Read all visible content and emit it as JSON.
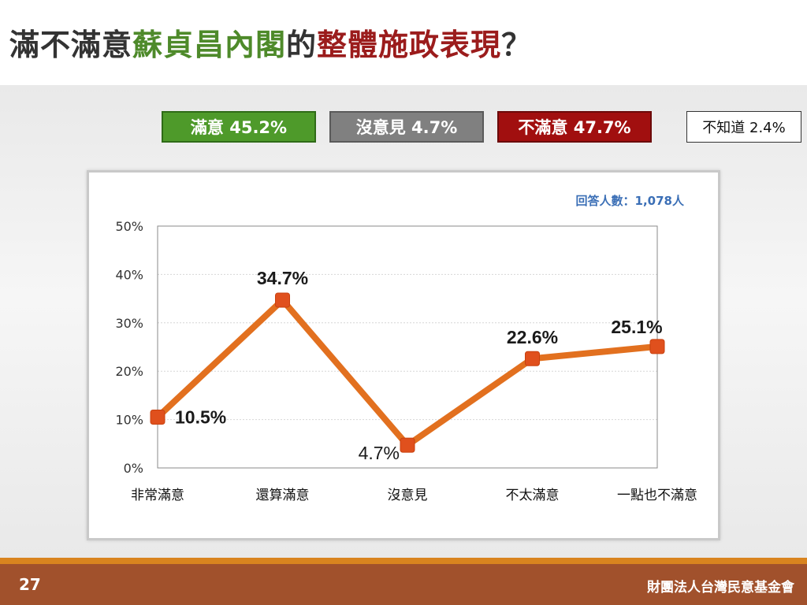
{
  "title": {
    "part1": "滿不滿意",
    "part2": "蘇貞昌內閣",
    "part3": "的",
    "part4": "整體施政表現",
    "part5": "？"
  },
  "summary": {
    "satisfied": "滿意 45.2%",
    "neutral": "沒意見 4.7%",
    "dissatisfied": "不滿意 47.7%",
    "unknown": "不知道 2.4%"
  },
  "colors": {
    "line": "#e2701f",
    "marker": "#e0501d",
    "satisfied": "#4e9a2a",
    "neutral": "#808080",
    "dissatisfied": "#a10f0f",
    "footer": "#a1512c",
    "footer_stripe": "#d9841f",
    "sample_text": "#3b6fb6"
  },
  "chart_data": {
    "type": "line",
    "sample_note": "回答人數：1,078人",
    "categories": [
      "非常滿意",
      "還算滿意",
      "沒意見",
      "不太滿意",
      "一點也不滿意"
    ],
    "values": [
      10.5,
      34.7,
      4.7,
      22.6,
      25.1
    ],
    "data_labels": [
      "10.5%",
      "34.7%",
      "4.7%",
      "22.6%",
      "25.1%"
    ],
    "y_ticks": [
      "0%",
      "10%",
      "20%",
      "30%",
      "40%",
      "50%"
    ],
    "ylim": [
      0,
      50
    ],
    "grid": true
  },
  "footer": {
    "page": "27",
    "org": "財團法人台灣民意基金會"
  }
}
